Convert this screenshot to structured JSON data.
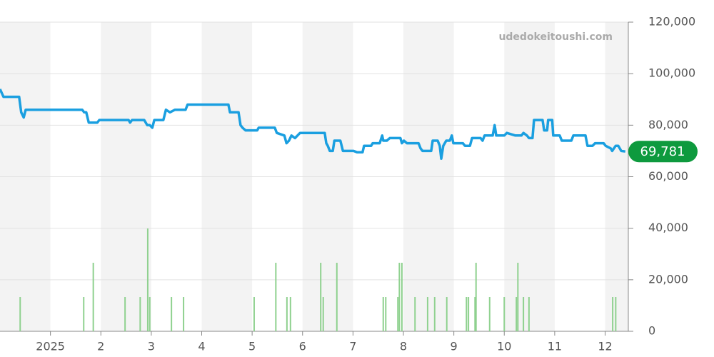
{
  "chart_data": {
    "type": "line",
    "watermark": "udedokeitoushi.com",
    "xlim": [
      0,
      12.46
    ],
    "xticks": [
      {
        "value": 1,
        "label": "2025"
      },
      2,
      3,
      4,
      5,
      6,
      7,
      8,
      9,
      10,
      11,
      12
    ],
    "ylim": [
      0,
      120000
    ],
    "yticks": [
      0,
      {
        "value": 20000,
        "label": "20,000"
      },
      {
        "value": 40000,
        "label": "40,000"
      },
      {
        "value": 60000,
        "label": "60,000"
      },
      {
        "value": 80000,
        "label": "80,000"
      },
      {
        "value": 100000,
        "label": "100,000"
      },
      {
        "value": 120000,
        "label": "120,000"
      }
    ],
    "grid": true,
    "series": [
      {
        "type": "line",
        "color": "#1a9fe0",
        "x": [
          0.0,
          0.07,
          0.38,
          0.42,
          0.47,
          0.51,
          1.63,
          1.67,
          1.71,
          1.76,
          1.93,
          1.97,
          2.55,
          2.58,
          2.62,
          2.86,
          2.92,
          2.97,
          3.02,
          3.06,
          3.24,
          3.29,
          3.37,
          3.47,
          3.68,
          3.72,
          4.53,
          4.56,
          4.73,
          4.77,
          4.81,
          4.87,
          5.1,
          5.13,
          5.45,
          5.49,
          5.64,
          5.68,
          5.73,
          5.78,
          5.85,
          5.95,
          6.44,
          6.47,
          6.5,
          6.54,
          6.6,
          6.63,
          6.75,
          6.8,
          7.01,
          7.08,
          7.19,
          7.22,
          7.36,
          7.39,
          7.53,
          7.58,
          7.6,
          7.67,
          7.73,
          7.94,
          7.97,
          8.01,
          8.07,
          8.14,
          8.3,
          8.34,
          8.38,
          8.55,
          8.58,
          8.68,
          8.72,
          8.75,
          8.79,
          8.85,
          8.92,
          8.96,
          8.99,
          9.18,
          9.22,
          9.32,
          9.36,
          9.53,
          9.57,
          9.61,
          9.77,
          9.81,
          9.84,
          10.0,
          10.05,
          10.22,
          10.34,
          10.38,
          10.45,
          10.49,
          10.56,
          10.59,
          10.76,
          10.79,
          10.85,
          10.87,
          10.95,
          10.97,
          11.1,
          11.14,
          11.33,
          11.37,
          11.61,
          11.65,
          11.75,
          11.8,
          11.97,
          12.01,
          12.11,
          12.14,
          12.21,
          12.26,
          12.32,
          12.4
        ],
        "values": [
          94000,
          91000,
          91000,
          85000,
          83000,
          86000,
          86000,
          85000,
          85000,
          81000,
          81000,
          82000,
          82000,
          81000,
          82000,
          82000,
          80000,
          80000,
          79000,
          82000,
          82000,
          86000,
          85000,
          86000,
          86000,
          88000,
          88000,
          85000,
          85000,
          80000,
          79000,
          78000,
          78000,
          79000,
          79000,
          77000,
          76000,
          73000,
          74000,
          76000,
          75000,
          77000,
          77000,
          73000,
          72000,
          70000,
          70000,
          74000,
          74000,
          70000,
          70000,
          69500,
          69500,
          72000,
          72000,
          73000,
          73000,
          76000,
          74000,
          74000,
          75000,
          75000,
          73000,
          74000,
          73000,
          73000,
          73000,
          71000,
          70000,
          70000,
          74000,
          74000,
          72000,
          67000,
          72000,
          74000,
          74000,
          76000,
          73000,
          73000,
          72000,
          72000,
          75000,
          75000,
          74000,
          76000,
          76000,
          80000,
          76000,
          76000,
          77000,
          76000,
          76000,
          77000,
          76000,
          75000,
          75000,
          82000,
          82000,
          78000,
          78000,
          82000,
          82000,
          76000,
          76000,
          74000,
          74000,
          76000,
          76000,
          72000,
          72000,
          73000,
          73000,
          72000,
          71000,
          70000,
          72000,
          72000,
          70000,
          69781
        ]
      },
      {
        "type": "bar",
        "color": "#8fd18f",
        "x": [
          0.4,
          1.66,
          1.85,
          2.48,
          2.78,
          2.93,
          2.97,
          3.4,
          3.64,
          5.04,
          5.47,
          5.69,
          5.76,
          6.36,
          6.41,
          6.68,
          7.6,
          7.65,
          7.89,
          7.92,
          7.97,
          8.23,
          8.48,
          8.62,
          8.86,
          9.25,
          9.29,
          9.42,
          9.44,
          9.71,
          10.0,
          10.24,
          10.27,
          10.38,
          10.49,
          12.15,
          12.21
        ],
        "values": [
          13300,
          13300,
          26600,
          13300,
          13300,
          39900,
          13300,
          13300,
          13300,
          13300,
          26600,
          13300,
          13300,
          26600,
          13300,
          26600,
          13300,
          13300,
          13300,
          26600,
          26600,
          13300,
          13300,
          13300,
          13300,
          13300,
          13300,
          13300,
          26600,
          13300,
          13300,
          13300,
          26600,
          13300,
          13300,
          13300,
          13300
        ]
      }
    ],
    "last_price": {
      "value": 69781,
      "label": "69,781",
      "color": "#0e9a3e"
    }
  }
}
